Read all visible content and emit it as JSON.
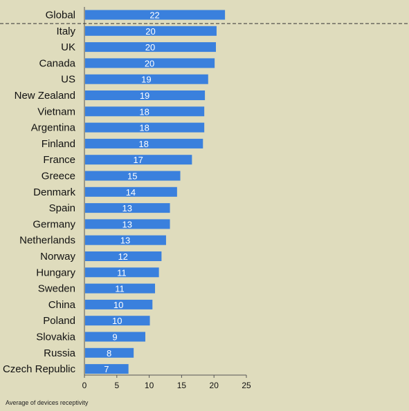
{
  "chart_data": {
    "type": "bar",
    "orientation": "horizontal",
    "categories": [
      "Global",
      "Italy",
      "UK",
      "Canada",
      "US",
      "New Zealand",
      "Vietnam",
      "Argentina",
      "Finland",
      "France",
      "Greece",
      "Denmark",
      "Spain",
      "Germany",
      "Netherlands",
      "Norway",
      "Hungary",
      "Sweden",
      "China",
      "Poland",
      "Slovakia",
      "Russia",
      "Czech Republic"
    ],
    "values": [
      21.7,
      20.4,
      20.3,
      20.1,
      19.1,
      18.6,
      18.5,
      18.5,
      18.3,
      16.6,
      14.8,
      14.3,
      13.2,
      13.2,
      12.6,
      11.9,
      11.5,
      10.9,
      10.5,
      10.1,
      9.4,
      7.6,
      6.8
    ],
    "value_labels": [
      "22",
      "20",
      "20",
      "20",
      "19",
      "19",
      "18",
      "18",
      "18",
      "17",
      "15",
      "14",
      "13",
      "13",
      "13",
      "12",
      "11",
      "11",
      "10",
      "10",
      "9",
      "8",
      "7"
    ],
    "xlabel": "Average of devices receptivity",
    "xlim": [
      0,
      25
    ],
    "x_ticks": [
      "0",
      "5",
      "10",
      "15",
      "20",
      "25"
    ],
    "grid": false,
    "separator_after": "Global",
    "colors": {
      "bar": "#3a80dd",
      "background": "#dfdcbd",
      "axis": "#555555"
    }
  }
}
